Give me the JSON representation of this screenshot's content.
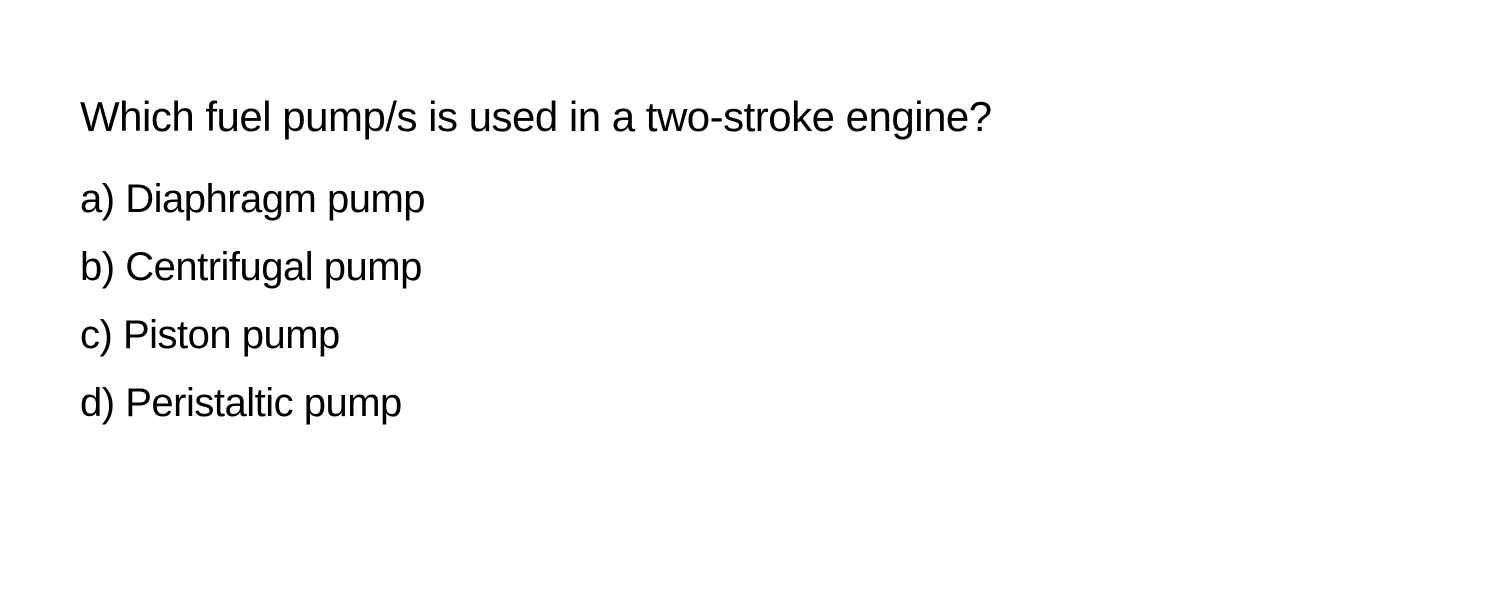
{
  "question": {
    "text": "Which fuel pump/s is used in a two-stroke engine?",
    "options": [
      {
        "label": "a)",
        "text": "Diaphragm pump"
      },
      {
        "label": "b)",
        "text": "Centrifugal pump"
      },
      {
        "label": "c)",
        "text": "Piston pump"
      },
      {
        "label": "d)",
        "text": "Peristaltic pump"
      }
    ],
    "font_color": "#000000",
    "background_color": "#ffffff",
    "question_fontsize": 42,
    "option_fontsize": 40
  }
}
